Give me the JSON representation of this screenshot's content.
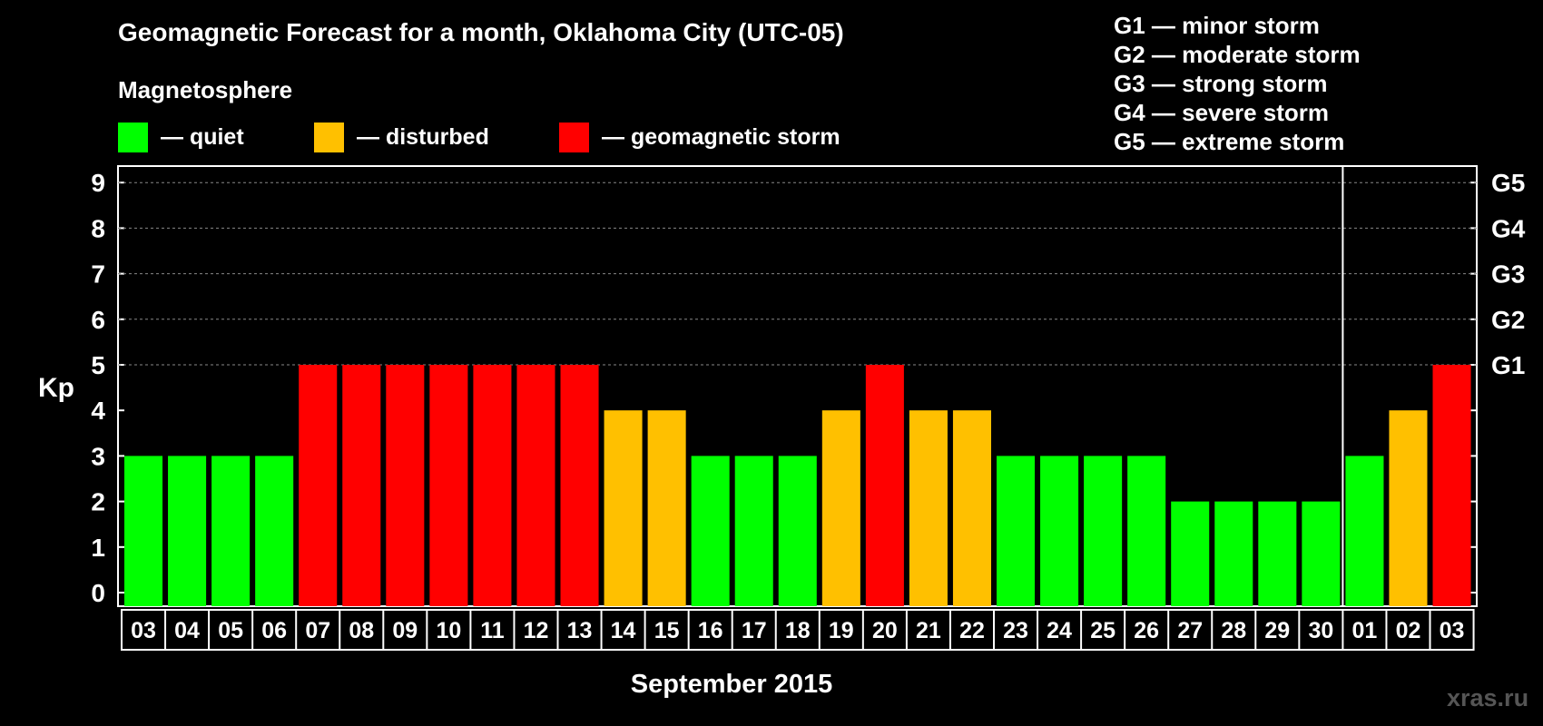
{
  "chart_data": {
    "type": "bar",
    "title": "Geomagnetic Forecast for a month, Oklahoma City (UTC-05)",
    "subtitle": "Magnetosphere",
    "ylabel": "Kp",
    "xlabel": "September 2015",
    "ylim": [
      0,
      9
    ],
    "yticks": [
      "0",
      "1",
      "2",
      "3",
      "4",
      "5",
      "6",
      "7",
      "8",
      "9"
    ],
    "right_ticks": [
      {
        "kp": 5,
        "label": "G1"
      },
      {
        "kp": 6,
        "label": "G2"
      },
      {
        "kp": 7,
        "label": "G3"
      },
      {
        "kp": 8,
        "label": "G4"
      },
      {
        "kp": 9,
        "label": "G5"
      }
    ],
    "categories": [
      "03",
      "04",
      "05",
      "06",
      "07",
      "08",
      "09",
      "10",
      "11",
      "12",
      "13",
      "14",
      "15",
      "16",
      "17",
      "18",
      "19",
      "20",
      "21",
      "22",
      "23",
      "24",
      "25",
      "26",
      "27",
      "28",
      "29",
      "30",
      "01",
      "02",
      "03"
    ],
    "values": [
      3,
      3,
      3,
      3,
      5,
      5,
      5,
      5,
      5,
      5,
      5,
      4,
      4,
      3,
      3,
      3,
      4,
      5,
      4,
      4,
      3,
      3,
      3,
      3,
      2,
      2,
      2,
      2,
      3,
      4,
      5
    ],
    "month_separator_after_index": 27,
    "legend": [
      {
        "label": "— quiet",
        "color": "#00ff00"
      },
      {
        "label": "— disturbed",
        "color": "#ffc000"
      },
      {
        "label": "— geomagnetic storm",
        "color": "#ff0000"
      }
    ],
    "storm_scale": [
      "G1 — minor storm",
      "G2 — moderate storm",
      "G3 — strong storm",
      "G4 — severe storm",
      "G5 — extreme storm"
    ],
    "colors": {
      "quiet": "#00ff00",
      "disturbed": "#ffc000",
      "storm": "#ff0000"
    },
    "grid": true
  },
  "watermark": "xras.ru"
}
